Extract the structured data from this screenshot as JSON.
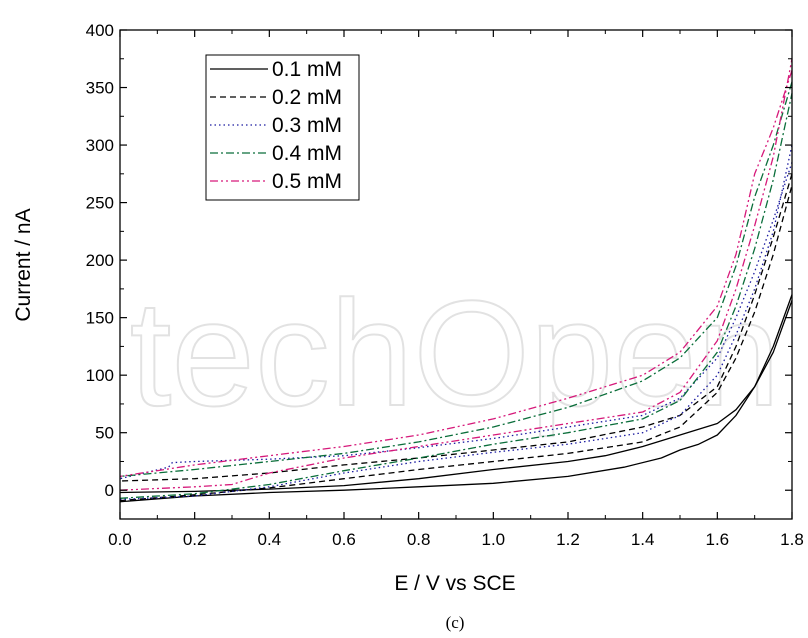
{
  "chart_data": {
    "type": "line",
    "xlabel": "E / V vs SCE",
    "ylabel": "Current / nA",
    "xlim": [
      0.0,
      1.8
    ],
    "ylim": [
      -25,
      400
    ],
    "xticks": [
      "0.0",
      "0.2",
      "0.4",
      "0.6",
      "0.8",
      "1.0",
      "1.2",
      "1.4",
      "1.6",
      "1.8"
    ],
    "yticks": [
      "0",
      "50",
      "100",
      "150",
      "200",
      "250",
      "300",
      "350",
      "400"
    ],
    "grid": false,
    "legend_position": "top-left",
    "caption": "(c)",
    "watermark": "techOpen",
    "series": [
      {
        "name": "0.1 mM",
        "color": "#000000",
        "dash": "solid",
        "forward": [
          [
            0.0,
            -10
          ],
          [
            0.2,
            -5
          ],
          [
            0.4,
            -2
          ],
          [
            0.6,
            0
          ],
          [
            0.8,
            3
          ],
          [
            1.0,
            6
          ],
          [
            1.2,
            12
          ],
          [
            1.35,
            20
          ],
          [
            1.45,
            28
          ],
          [
            1.5,
            35
          ],
          [
            1.55,
            40
          ],
          [
            1.6,
            48
          ],
          [
            1.65,
            65
          ],
          [
            1.7,
            90
          ],
          [
            1.75,
            125
          ],
          [
            1.8,
            170
          ]
        ],
        "reverse": [
          [
            1.8,
            165
          ],
          [
            1.75,
            120
          ],
          [
            1.7,
            90
          ],
          [
            1.65,
            70
          ],
          [
            1.6,
            58
          ],
          [
            1.5,
            48
          ],
          [
            1.4,
            38
          ],
          [
            1.3,
            30
          ],
          [
            1.2,
            25
          ],
          [
            1.0,
            18
          ],
          [
            0.8,
            10
          ],
          [
            0.6,
            4
          ],
          [
            0.4,
            1
          ],
          [
            0.2,
            -1
          ],
          [
            0.0,
            -2
          ]
        ]
      },
      {
        "name": "0.2 mM",
        "color": "#000000",
        "dash": "dashed",
        "forward": [
          [
            0.0,
            -9
          ],
          [
            0.2,
            -4
          ],
          [
            0.4,
            2
          ],
          [
            0.6,
            10
          ],
          [
            0.8,
            18
          ],
          [
            1.0,
            25
          ],
          [
            1.2,
            32
          ],
          [
            1.4,
            42
          ],
          [
            1.5,
            55
          ],
          [
            1.6,
            85
          ],
          [
            1.65,
            115
          ],
          [
            1.7,
            155
          ],
          [
            1.75,
            205
          ],
          [
            1.8,
            265
          ]
        ],
        "reverse": [
          [
            1.8,
            275
          ],
          [
            1.75,
            220
          ],
          [
            1.7,
            170
          ],
          [
            1.65,
            125
          ],
          [
            1.6,
            90
          ],
          [
            1.5,
            65
          ],
          [
            1.4,
            55
          ],
          [
            1.2,
            42
          ],
          [
            1.0,
            35
          ],
          [
            0.8,
            28
          ],
          [
            0.6,
            22
          ],
          [
            0.4,
            15
          ],
          [
            0.2,
            10
          ],
          [
            0.0,
            8
          ]
        ]
      },
      {
        "name": "0.3 mM",
        "color": "#1a1aa0",
        "dash": "dotted",
        "forward": [
          [
            0.0,
            -8
          ],
          [
            0.2,
            -5
          ],
          [
            0.4,
            3
          ],
          [
            0.6,
            15
          ],
          [
            0.8,
            25
          ],
          [
            1.0,
            33
          ],
          [
            1.2,
            40
          ],
          [
            1.4,
            50
          ],
          [
            1.5,
            65
          ],
          [
            1.6,
            100
          ],
          [
            1.65,
            135
          ],
          [
            1.7,
            175
          ],
          [
            1.75,
            225
          ],
          [
            1.8,
            300
          ]
        ],
        "reverse": [
          [
            1.8,
            285
          ],
          [
            1.75,
            235
          ],
          [
            1.7,
            190
          ],
          [
            1.65,
            150
          ],
          [
            1.6,
            115
          ],
          [
            1.5,
            80
          ],
          [
            1.4,
            65
          ],
          [
            1.2,
            55
          ],
          [
            1.0,
            45
          ],
          [
            0.8,
            37
          ],
          [
            0.6,
            30
          ],
          [
            0.4,
            27
          ],
          [
            0.2,
            25
          ],
          [
            0.14,
            24
          ],
          [
            0.13,
            20
          ],
          [
            0.0,
            10
          ]
        ]
      },
      {
        "name": "0.4 mM",
        "color": "#0a6e3a",
        "dash": "dashdot",
        "forward": [
          [
            0.0,
            -7
          ],
          [
            0.2,
            -3
          ],
          [
            0.4,
            5
          ],
          [
            0.6,
            17
          ],
          [
            0.8,
            28
          ],
          [
            1.0,
            40
          ],
          [
            1.2,
            50
          ],
          [
            1.4,
            62
          ],
          [
            1.5,
            78
          ],
          [
            1.6,
            120
          ],
          [
            1.65,
            160
          ],
          [
            1.7,
            210
          ],
          [
            1.75,
            270
          ],
          [
            1.8,
            345
          ]
        ],
        "reverse": [
          [
            1.8,
            355
          ],
          [
            1.75,
            300
          ],
          [
            1.7,
            255
          ],
          [
            1.65,
            195
          ],
          [
            1.6,
            150
          ],
          [
            1.5,
            115
          ],
          [
            1.4,
            95
          ],
          [
            1.2,
            72
          ],
          [
            1.0,
            55
          ],
          [
            0.8,
            42
          ],
          [
            0.6,
            32
          ],
          [
            0.4,
            25
          ],
          [
            0.2,
            18
          ],
          [
            0.0,
            12
          ]
        ]
      },
      {
        "name": "0.5 mM",
        "color": "#d6197a",
        "dash": "dashdotdot",
        "forward": [
          [
            0.0,
            0
          ],
          [
            0.2,
            3
          ],
          [
            0.3,
            5
          ],
          [
            0.4,
            15
          ],
          [
            0.6,
            28
          ],
          [
            0.8,
            38
          ],
          [
            1.0,
            48
          ],
          [
            1.2,
            58
          ],
          [
            1.4,
            68
          ],
          [
            1.5,
            85
          ],
          [
            1.6,
            130
          ],
          [
            1.65,
            175
          ],
          [
            1.7,
            230
          ],
          [
            1.75,
            290
          ],
          [
            1.8,
            375
          ]
        ],
        "reverse": [
          [
            1.8,
            365
          ],
          [
            1.75,
            315
          ],
          [
            1.7,
            275
          ],
          [
            1.65,
            205
          ],
          [
            1.6,
            160
          ],
          [
            1.5,
            120
          ],
          [
            1.4,
            100
          ],
          [
            1.2,
            80
          ],
          [
            1.0,
            62
          ],
          [
            0.8,
            48
          ],
          [
            0.6,
            38
          ],
          [
            0.4,
            30
          ],
          [
            0.2,
            22
          ],
          [
            0.0,
            12
          ]
        ]
      }
    ]
  }
}
